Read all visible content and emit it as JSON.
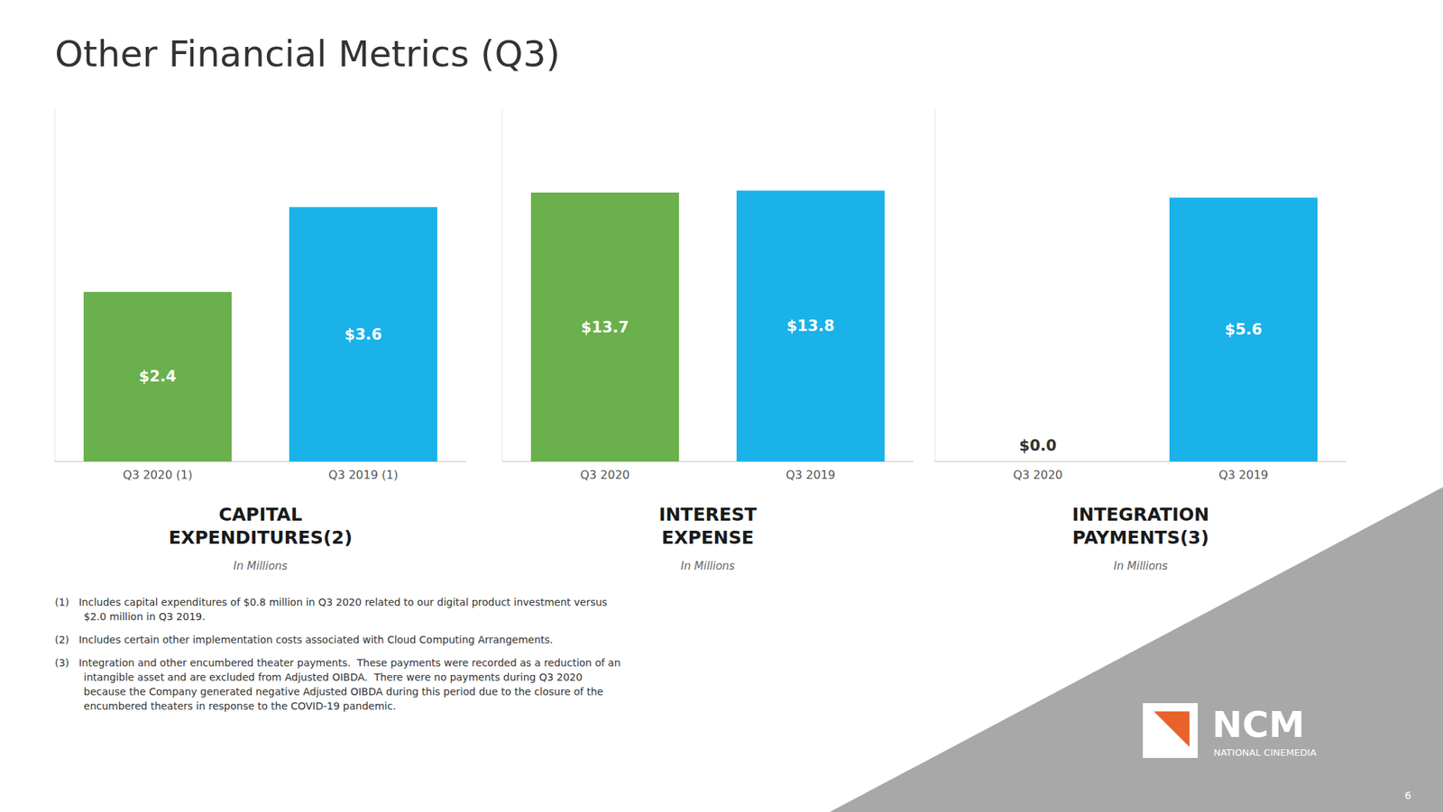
{
  "title": "Other Financial Metrics (Q3)",
  "chart_data": [
    {
      "type": "bar",
      "title": [
        "CAPITAL",
        "EXPENDITURES(2)"
      ],
      "subtitle": "In Millions",
      "categories": [
        "Q3 2020 (1)",
        "Q3 2019 (1)"
      ],
      "values": [
        2.4,
        3.6
      ],
      "value_labels": [
        "$2.4",
        "$3.6"
      ],
      "colors": [
        "#6ab04c",
        "#1ab2e8"
      ],
      "ylim": [
        0,
        5.0
      ],
      "data_labels": true,
      "tick_labels": "x",
      "grid": false
    },
    {
      "type": "bar",
      "title": [
        "INTEREST",
        "EXPENSE"
      ],
      "subtitle": "In Millions",
      "categories": [
        "Q3 2020",
        "Q3 2019"
      ],
      "values": [
        13.7,
        13.8
      ],
      "value_labels": [
        "$13.7",
        "$13.8"
      ],
      "colors": [
        "#6ab04c",
        "#1ab2e8"
      ],
      "ylim": [
        0,
        18.0
      ],
      "data_labels": true,
      "tick_labels": "x",
      "grid": false
    },
    {
      "type": "bar",
      "title": [
        "INTEGRATION",
        "PAYMENTS(3)"
      ],
      "subtitle": "In Millions",
      "categories": [
        "Q3 2020",
        "Q3 2019"
      ],
      "values": [
        0.0,
        5.6
      ],
      "value_labels": [
        "$0.0",
        "$5.6"
      ],
      "colors": [
        "#6ab04c",
        "#1ab2e8"
      ],
      "ylim": [
        0,
        7.5
      ],
      "data_labels": true,
      "tick_labels": "x",
      "grid": false
    }
  ],
  "footnotes": [
    "(1)   Includes capital expenditures of $0.8 million in Q3 2020 related to our digital product investment versus\n         $2.0 million in Q3 2019.",
    "(2)   Includes certain other implementation costs associated with Cloud Computing Arrangements.",
    "(3)   Integration and other encumbered theater payments.  These payments were recorded as a reduction of an\n         intangible asset and are excluded from Adjusted OIBDA.  There were no payments during Q3 2020\n         because the Company generated negative Adjusted OIBDA during this period due to the closure of the\n         encumbered theaters in response to the COVID-19 pandemic."
  ],
  "annotations": [
    "NCM",
    "NATIONAL CINEMEDIA"
  ],
  "page_number": "6"
}
